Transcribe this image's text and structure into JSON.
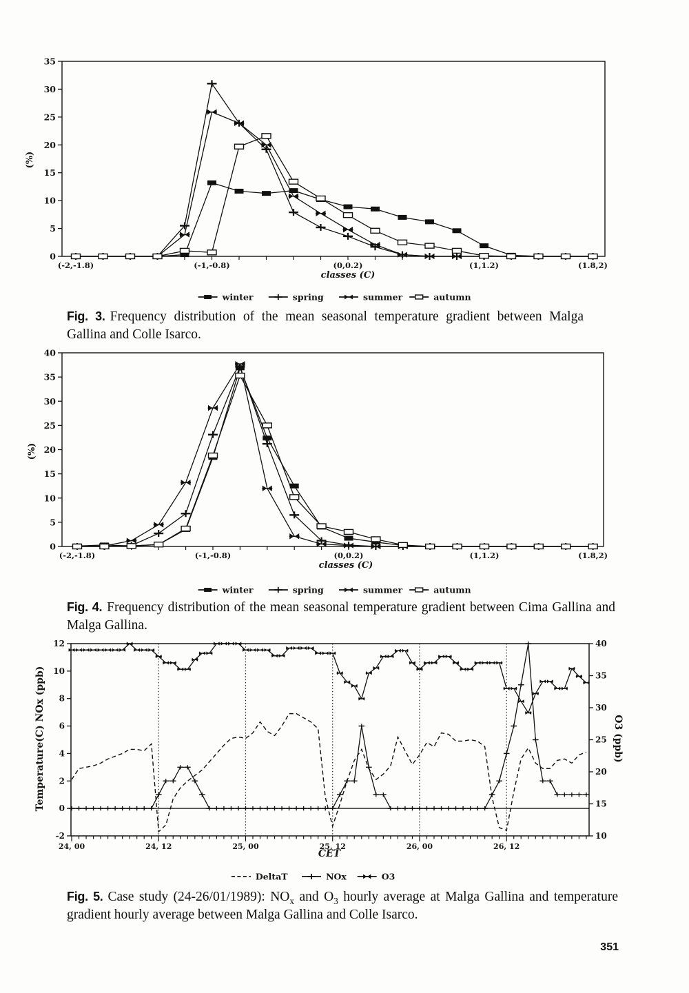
{
  "page": {
    "number": "351"
  },
  "figures": [
    {
      "caption_label": "Fig. 3.",
      "caption_parts": [
        {
          "text": "Frequency distribution of the mean seasonal temperature gradient between Malga Gallina and Colle Isarco."
        }
      ]
    },
    {
      "caption_label": "Fig. 4.",
      "caption_parts": [
        {
          "text": "Frequency distribution of the mean seasonal temperature gradient between Cima Gallina and Malga Gallina."
        }
      ]
    },
    {
      "caption_label": "Fig. 5.",
      "caption_parts": [
        {
          "text": "Case study  (24-26/01/1989): NO"
        },
        {
          "text": "x",
          "sub": true
        },
        {
          "text": " and O"
        },
        {
          "text": "3",
          "sub": true
        },
        {
          "text": " hourly average at Malga Gallina and temperature gradient hourly average between Malga Gallina and Colle Isarco."
        }
      ]
    }
  ],
  "chart_data": [
    {
      "type": "line",
      "title": "Frequency distribution of mean seasonal temperature gradient (Malga Gallina - Colle Isarco)",
      "xlabel": "classes (C)",
      "ylabel": "(%)",
      "ylim": [
        0,
        35
      ],
      "ytick_step": 5,
      "grid": false,
      "legend_position": "bottom",
      "n_classes": 20,
      "x_range": [
        -2,
        2
      ],
      "class_width": 0.2,
      "x_tick_labels": [
        {
          "pos": 0,
          "label": "(-2,-1.8)"
        },
        {
          "pos": 5,
          "label": "(-1,-0.8)"
        },
        {
          "pos": 10,
          "label": "(0,0.2)"
        },
        {
          "pos": 15,
          "label": "(1,1.2)"
        },
        {
          "pos": 19,
          "label": "(1.8,2)"
        }
      ],
      "series": [
        {
          "name": "winter",
          "marker": "filled-rect",
          "style": "solid",
          "values": [
            0,
            0,
            0,
            0,
            0.3,
            13.2,
            11.7,
            11.3,
            11.8,
            10.2,
            8.9,
            8.5,
            7.0,
            6.2,
            4.6,
            1.9,
            0.2,
            0,
            0,
            0
          ]
        },
        {
          "name": "spring",
          "marker": "plus",
          "style": "solid",
          "values": [
            0,
            0,
            0,
            0,
            5.5,
            31.0,
            23.9,
            19.2,
            7.9,
            5.2,
            3.6,
            1.7,
            0.3,
            0,
            0,
            0,
            0,
            0,
            0,
            0
          ]
        },
        {
          "name": "summer",
          "marker": "bowtie",
          "style": "solid",
          "values": [
            0,
            0,
            0,
            0,
            3.9,
            25.9,
            23.9,
            20.0,
            10.8,
            7.7,
            4.8,
            2.1,
            0.3,
            0,
            0,
            0,
            0,
            0,
            0,
            0
          ]
        },
        {
          "name": "autumn",
          "marker": "open-rect",
          "style": "solid",
          "values": [
            0,
            0,
            0,
            0,
            1.0,
            0.7,
            19.7,
            21.6,
            13.4,
            10.4,
            7.4,
            4.6,
            2.5,
            1.9,
            1.0,
            0.1,
            0,
            0,
            0,
            0
          ]
        }
      ]
    },
    {
      "type": "line",
      "title": "Frequency distribution of mean seasonal temperature gradient (Cima Gallina - Malga Gallina)",
      "xlabel": "classes (C)",
      "ylabel": "(%)",
      "ylim": [
        0,
        40
      ],
      "ytick_step": 5,
      "grid": false,
      "legend_position": "bottom",
      "n_classes": 20,
      "x_range": [
        -2,
        2
      ],
      "class_width": 0.2,
      "x_tick_labels": [
        {
          "pos": 0,
          "label": "(-2,-1.8)"
        },
        {
          "pos": 5,
          "label": "(-1,-0.8)"
        },
        {
          "pos": 10,
          "label": "(0,0.2)"
        },
        {
          "pos": 15,
          "label": "(1,1.2)"
        },
        {
          "pos": 19,
          "label": "(1.8,2)"
        }
      ],
      "series": [
        {
          "name": "winter",
          "marker": "filled-rect",
          "style": "solid",
          "values": [
            0.1,
            0.3,
            0.1,
            0.4,
            3.5,
            18.4,
            36.9,
            22.4,
            12.5,
            4.0,
            1.7,
            0.9,
            0.2,
            0,
            0,
            0,
            0,
            0,
            0,
            0
          ]
        },
        {
          "name": "spring",
          "marker": "plus",
          "style": "solid",
          "values": [
            0,
            0,
            0.2,
            2.7,
            6.8,
            23.1,
            37.1,
            21.2,
            6.5,
            1.2,
            0.3,
            0,
            0,
            0,
            0,
            0,
            0,
            0,
            0,
            0
          ]
        },
        {
          "name": "summer",
          "marker": "bowtie",
          "style": "solid",
          "values": [
            0,
            0.1,
            1.2,
            4.5,
            13.2,
            28.6,
            37.7,
            12.0,
            2.1,
            0.5,
            0.2,
            0,
            0,
            0,
            0,
            0,
            0,
            0,
            0,
            0
          ]
        },
        {
          "name": "autumn",
          "marker": "open-rect",
          "style": "solid",
          "values": [
            0,
            0,
            0.1,
            0.4,
            3.7,
            18.8,
            35.3,
            25.0,
            10.2,
            4.2,
            3.0,
            1.5,
            0.3,
            0,
            0,
            0,
            0,
            0,
            0,
            0
          ]
        }
      ]
    },
    {
      "type": "line",
      "title": "Case study 24-26/01/1989: NOx and O3 hourly average and temperature gradient",
      "xlabel": "CET",
      "ylabel_left": "Temperature(C)    NOx (ppb)",
      "ylabel_right": "O3 (ppb)",
      "ylim_left": [
        -2,
        12
      ],
      "ylim_right": [
        10,
        40
      ],
      "ytick_step_left": 2,
      "ytick_step_right": 5,
      "grid": false,
      "hours": 72,
      "x_tick_labels": [
        {
          "pos": 0,
          "label": "24, 00"
        },
        {
          "pos": 12,
          "label": "24, 12"
        },
        {
          "pos": 24,
          "label": "25, 00"
        },
        {
          "pos": 36,
          "label": "25, 12"
        },
        {
          "pos": 48,
          "label": "26, 00"
        },
        {
          "pos": 60,
          "label": "26, 12"
        }
      ],
      "vlines": [
        12,
        24,
        36,
        48,
        60
      ],
      "series": [
        {
          "name": "DeltaT",
          "axis": "left",
          "style": "dashed",
          "marker": "none",
          "values": [
            2.1,
            2.9,
            3.0,
            3.1,
            3.3,
            3.6,
            3.8,
            4.0,
            4.3,
            4.3,
            4.2,
            4.7,
            -1.7,
            -1.2,
            0.7,
            1.5,
            2.0,
            2.4,
            2.8,
            3.4,
            4.0,
            4.6,
            5.1,
            5.2,
            5.1,
            5.5,
            6.3,
            5.6,
            5.3,
            6.0,
            6.9,
            6.9,
            6.6,
            6.3,
            5.8,
            0.8,
            -1.3,
            0.3,
            2.0,
            3.5,
            4.3,
            2.9,
            2.1,
            2.5,
            3.1,
            5.2,
            4.2,
            3.2,
            3.9,
            4.8,
            4.5,
            5.5,
            5.4,
            4.9,
            4.9,
            5.0,
            4.9,
            4.5,
            0.8,
            -1.4,
            -1.6,
            1.2,
            3.6,
            4.4,
            3.3,
            2.9,
            2.9,
            3.5,
            3.6,
            3.3,
            3.9,
            4.1
          ]
        },
        {
          "name": "NOx",
          "axis": "left",
          "style": "solid",
          "marker": "plus",
          "values": [
            0,
            0,
            0,
            0,
            0,
            0,
            0,
            0,
            0,
            0,
            0,
            0,
            1,
            2,
            2,
            3,
            3,
            2,
            1,
            0,
            0,
            0,
            0,
            0,
            0,
            0,
            0,
            0,
            0,
            0,
            0,
            0,
            0,
            0,
            0,
            0,
            0,
            1,
            2,
            2,
            6,
            3,
            1,
            1,
            0,
            0,
            0,
            0,
            0,
            0,
            0,
            0,
            0,
            0,
            0,
            0,
            0,
            0,
            1,
            2,
            4,
            6,
            9,
            12,
            5,
            2,
            2,
            1,
            1,
            1,
            1,
            1
          ]
        },
        {
          "name": "O3",
          "axis": "right",
          "style": "solid",
          "marker": "bowtie",
          "values": [
            39,
            39,
            39,
            39,
            39,
            39,
            39,
            39,
            40,
            39,
            39,
            39,
            38,
            37,
            37,
            36,
            36,
            37.5,
            38.5,
            38.5,
            40,
            40,
            40,
            40,
            39,
            39,
            39,
            39,
            38.1,
            38.1,
            39.3,
            39.3,
            39.3,
            39.3,
            38.5,
            38.5,
            38.5,
            35.4,
            34,
            33.4,
            31.4,
            35.4,
            36.2,
            38,
            38,
            38.9,
            38.9,
            37,
            36,
            37,
            37,
            38,
            38,
            37,
            36,
            36,
            37,
            37,
            37,
            37,
            33,
            33,
            31,
            29.2,
            32.2,
            34.1,
            34.1,
            33,
            33,
            36.1,
            34.9,
            33.9
          ]
        }
      ]
    }
  ]
}
